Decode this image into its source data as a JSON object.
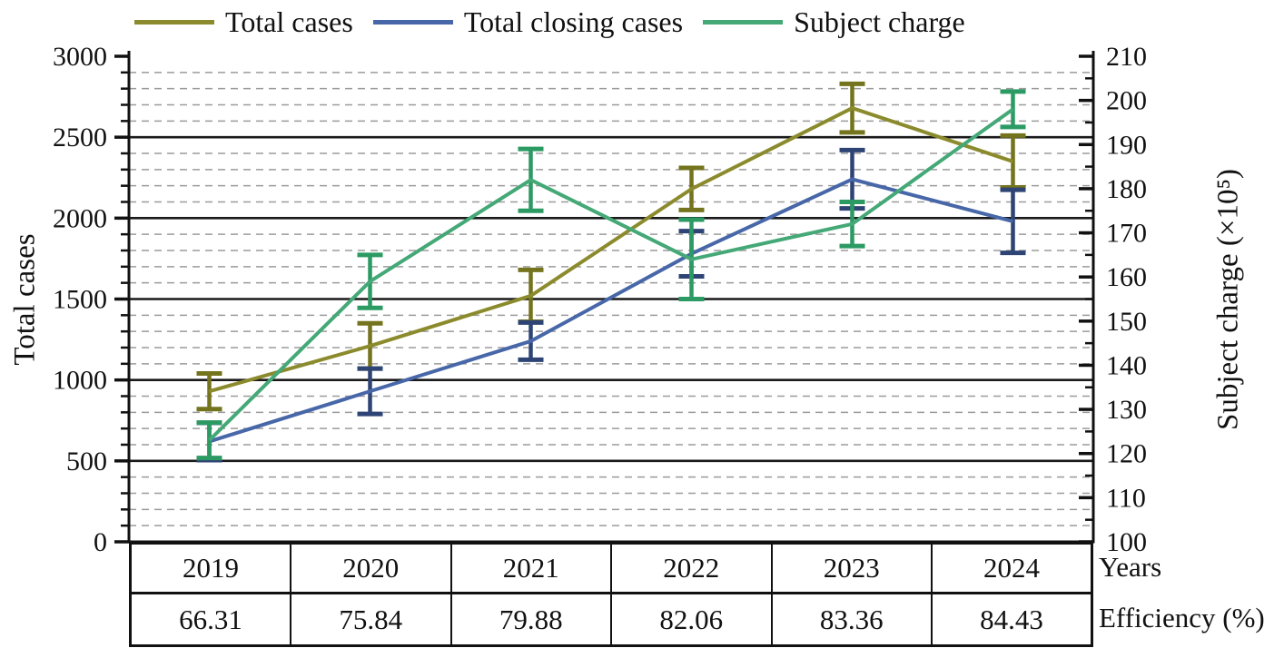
{
  "legend": {
    "items": [
      {
        "label": "Total cases",
        "color": "#8b8b2d"
      },
      {
        "label": "Total closing cases",
        "color": "#4767a8"
      },
      {
        "label": "Subject charge",
        "color": "#44a877"
      }
    ]
  },
  "chart_data": {
    "type": "line",
    "title": "",
    "categories": [
      "2019",
      "2020",
      "2021",
      "2022",
      "2023",
      "2024"
    ],
    "x_axis": {
      "title": "Years"
    },
    "left_axis": {
      "title": "Total cases",
      "min": 0,
      "max": 3000,
      "major_step": 500,
      "minor_step": 100,
      "tick_labels": [
        "0",
        "500",
        "1000",
        "1500",
        "2000",
        "2500",
        "3000"
      ]
    },
    "right_axis": {
      "title": "Subject charge (×10⁵)",
      "min": 100,
      "max": 210,
      "major_step": 10,
      "minor_step": 5,
      "tick_labels": [
        "100",
        "110",
        "120",
        "130",
        "140",
        "150",
        "160",
        "170",
        "180",
        "190",
        "200",
        "210"
      ]
    },
    "grid": {
      "solid_every": 500,
      "dashed_every": 100,
      "dashed_color": "#9b9b9b",
      "solid_color": "#1a1a1a"
    },
    "legend_position": "top",
    "series": [
      {
        "name": "Total cases",
        "axis": "left",
        "color": "#8b8b2d",
        "error_color": "#74741e",
        "values": [
          930,
          1210,
          1520,
          2180,
          2680,
          2350
        ],
        "errors": [
          110,
          140,
          160,
          130,
          150,
          160
        ]
      },
      {
        "name": "Total closing cases",
        "axis": "left",
        "color": "#4767a8",
        "error_color": "#2e4475",
        "values": [
          620,
          930,
          1240,
          1780,
          2240,
          1980
        ],
        "errors": [
          115,
          140,
          115,
          140,
          180,
          195
        ]
      },
      {
        "name": "Subject charge",
        "axis": "right",
        "color": "#44a877",
        "error_color": "#2c9a63",
        "values": [
          123,
          159,
          182,
          164,
          172,
          198
        ],
        "errors": [
          4,
          6,
          7,
          9,
          5,
          4
        ]
      }
    ],
    "efficiency_row": {
      "label": "Efficiency (%)",
      "values": [
        "66.31",
        "75.84",
        "79.88",
        "82.06",
        "83.36",
        "84.43"
      ]
    }
  }
}
